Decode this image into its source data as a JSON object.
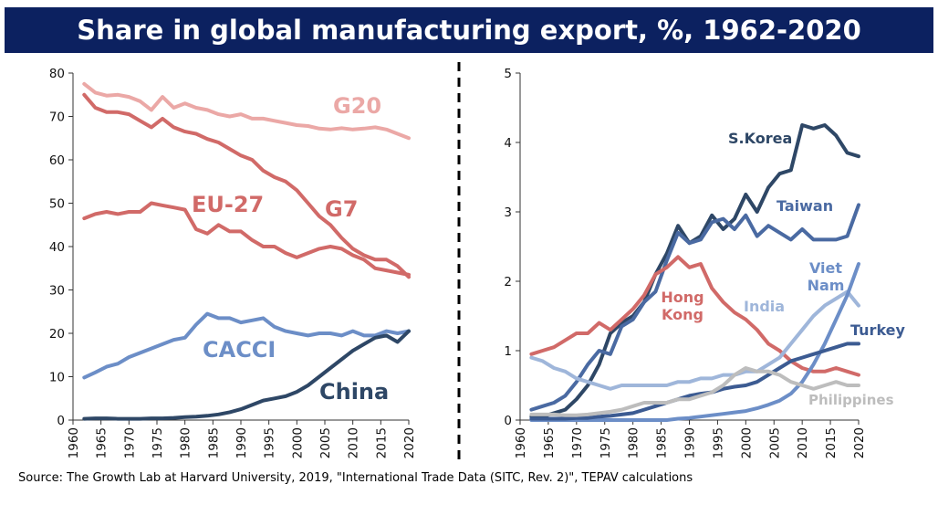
{
  "title": "Share in global manufacturing export, %, 1962-2020",
  "source": "Source: The Growth Lab at Harvard University, 2019, \"International Trade Data (SITC, Rev. 2)\", TEPAV calculations",
  "chart_data": [
    {
      "type": "line",
      "title": "",
      "xlabel": "",
      "ylabel": "",
      "xlim": [
        1960,
        2020
      ],
      "ylim": [
        0,
        80
      ],
      "yticks": [
        "0",
        "10",
        "20",
        "30",
        "40",
        "50",
        "60",
        "70",
        "80"
      ],
      "xticks": [
        "1960",
        "1965",
        "1970",
        "1975",
        "1980",
        "1985",
        "1990",
        "1995",
        "2000",
        "2005",
        "2010",
        "2015",
        "2020"
      ],
      "series": [
        {
          "name": "G20",
          "color": "#eba8a6",
          "x": [
            1962,
            1964,
            1966,
            1968,
            1970,
            1972,
            1974,
            1976,
            1978,
            1980,
            1982,
            1984,
            1986,
            1988,
            1990,
            1992,
            1994,
            1996,
            1998,
            2000,
            2002,
            2004,
            2006,
            2008,
            2010,
            2012,
            2014,
            2016,
            2018,
            2020
          ],
          "y": [
            77.5,
            75.5,
            74.8,
            75,
            74.5,
            73.5,
            71.5,
            74.5,
            72,
            73,
            72,
            71.5,
            70.5,
            70,
            70.5,
            69.5,
            69.5,
            69,
            68.5,
            68,
            67.8,
            67.2,
            67,
            67.3,
            67,
            67.2,
            67.5,
            67,
            66,
            65
          ]
        },
        {
          "name": "G7",
          "color": "#d16a68",
          "x": [
            1962,
            1964,
            1966,
            1968,
            1970,
            1972,
            1974,
            1976,
            1978,
            1980,
            1982,
            1984,
            1986,
            1988,
            1990,
            1992,
            1994,
            1996,
            1998,
            2000,
            2002,
            2004,
            2006,
            2008,
            2010,
            2012,
            2014,
            2016,
            2018,
            2020
          ],
          "y": [
            75,
            72,
            71,
            71,
            70.5,
            69,
            67.5,
            69.5,
            67.5,
            66.5,
            66,
            64.8,
            64,
            62.5,
            61,
            60,
            57.5,
            56,
            55,
            53,
            50,
            47,
            45,
            42,
            39.5,
            38,
            37,
            37,
            35.5,
            33
          ]
        },
        {
          "name": "EU-27",
          "color": "#d16a68",
          "x": [
            1962,
            1964,
            1966,
            1968,
            1970,
            1972,
            1974,
            1976,
            1978,
            1980,
            1982,
            1984,
            1986,
            1988,
            1990,
            1992,
            1994,
            1996,
            1998,
            2000,
            2002,
            2004,
            2006,
            2008,
            2010,
            2012,
            2014,
            2016,
            2018,
            2020
          ],
          "y": [
            46.5,
            47.5,
            48,
            47.5,
            48,
            48,
            50,
            49.5,
            49,
            48.5,
            44,
            43,
            45,
            43.5,
            43.5,
            41.5,
            40,
            40,
            38.5,
            37.5,
            38.5,
            39.5,
            40,
            39.5,
            38,
            37,
            35,
            34.5,
            34,
            33.5
          ]
        },
        {
          "name": "CACCI",
          "color": "#6c8ec7",
          "x": [
            1962,
            1964,
            1966,
            1968,
            1970,
            1972,
            1974,
            1976,
            1978,
            1980,
            1982,
            1984,
            1986,
            1988,
            1990,
            1992,
            1994,
            1996,
            1998,
            2000,
            2002,
            2004,
            2006,
            2008,
            2010,
            2012,
            2014,
            2016,
            2018,
            2020
          ],
          "y": [
            9.8,
            11,
            12.3,
            13,
            14.5,
            15.5,
            16.5,
            17.5,
            18.5,
            19,
            22,
            24.5,
            23.5,
            23.5,
            22.5,
            23,
            23.5,
            21.5,
            20.5,
            20,
            19.5,
            20,
            20,
            19.5,
            20.5,
            19.5,
            19.5,
            20.5,
            20,
            20.5
          ]
        },
        {
          "name": "China",
          "color": "#2e4766",
          "x": [
            1962,
            1964,
            1966,
            1968,
            1970,
            1972,
            1974,
            1976,
            1978,
            1980,
            1982,
            1984,
            1986,
            1988,
            1990,
            1992,
            1994,
            1996,
            1998,
            2000,
            2002,
            2004,
            2006,
            2008,
            2010,
            2012,
            2014,
            2016,
            2018,
            2020
          ],
          "y": [
            0.3,
            0.4,
            0.4,
            0.3,
            0.3,
            0.3,
            0.4,
            0.4,
            0.5,
            0.7,
            0.8,
            1,
            1.3,
            1.8,
            2.5,
            3.5,
            4.5,
            5,
            5.5,
            6.5,
            8,
            10,
            12,
            14,
            16,
            17.5,
            19,
            19.5,
            18,
            20.5
          ]
        }
      ]
    },
    {
      "type": "line",
      "title": "",
      "xlabel": "",
      "ylabel": "",
      "xlim": [
        1960,
        2020
      ],
      "ylim": [
        0,
        5
      ],
      "yticks": [
        "0",
        "1",
        "2",
        "3",
        "4",
        "5"
      ],
      "xticks": [
        "1960",
        "1965",
        "1970",
        "1975",
        "1980",
        "1985",
        "1990",
        "1995",
        "2000",
        "2005",
        "2010",
        "2015",
        "2020"
      ],
      "series": [
        {
          "name": "S.Korea",
          "color": "#2e4766",
          "x": [
            1962,
            1964,
            1966,
            1968,
            1970,
            1972,
            1974,
            1976,
            1978,
            1980,
            1982,
            1984,
            1986,
            1988,
            1990,
            1992,
            1994,
            1996,
            1998,
            2000,
            2002,
            2004,
            2006,
            2008,
            2010,
            2012,
            2014,
            2016,
            2018,
            2020
          ],
          "y": [
            0.05,
            0.05,
            0.1,
            0.15,
            0.3,
            0.5,
            0.8,
            1.25,
            1.4,
            1.5,
            1.7,
            2.1,
            2.4,
            2.8,
            2.55,
            2.65,
            2.95,
            2.75,
            2.9,
            3.25,
            3.0,
            3.35,
            3.55,
            3.6,
            4.25,
            4.2,
            4.25,
            4.1,
            3.85,
            3.8
          ]
        },
        {
          "name": "Taiwan",
          "color": "#4a6aa2",
          "x": [
            1962,
            1964,
            1966,
            1968,
            1970,
            1972,
            1974,
            1976,
            1978,
            1980,
            1982,
            1984,
            1986,
            1988,
            1990,
            1992,
            1994,
            1996,
            1998,
            2000,
            2002,
            2004,
            2006,
            2008,
            2010,
            2012,
            2014,
            2016,
            2018,
            2020
          ],
          "y": [
            0.15,
            0.2,
            0.25,
            0.35,
            0.55,
            0.8,
            1.0,
            0.95,
            1.35,
            1.45,
            1.7,
            1.85,
            2.3,
            2.7,
            2.55,
            2.6,
            2.85,
            2.9,
            2.75,
            2.95,
            2.65,
            2.8,
            2.7,
            2.6,
            2.75,
            2.6,
            2.6,
            2.6,
            2.65,
            3.1
          ]
        },
        {
          "name": "Hong Kong",
          "color": "#d16a68",
          "x": [
            1962,
            1964,
            1966,
            1968,
            1970,
            1972,
            1974,
            1976,
            1978,
            1980,
            1982,
            1984,
            1986,
            1988,
            1990,
            1992,
            1994,
            1996,
            1998,
            2000,
            2002,
            2004,
            2006,
            2008,
            2010,
            2012,
            2014,
            2016,
            2018,
            2020
          ],
          "y": [
            0.95,
            1.0,
            1.05,
            1.15,
            1.25,
            1.25,
            1.4,
            1.3,
            1.45,
            1.6,
            1.8,
            2.1,
            2.2,
            2.35,
            2.2,
            2.25,
            1.9,
            1.7,
            1.55,
            1.45,
            1.3,
            1.1,
            1.0,
            0.85,
            0.75,
            0.7,
            0.7,
            0.75,
            0.7,
            0.65
          ]
        },
        {
          "name": "India",
          "color": "#9fb6da",
          "x": [
            1962,
            1964,
            1966,
            1968,
            1970,
            1972,
            1974,
            1976,
            1978,
            1980,
            1982,
            1984,
            1986,
            1988,
            1990,
            1992,
            1994,
            1996,
            1998,
            2000,
            2002,
            2004,
            2006,
            2008,
            2010,
            2012,
            2014,
            2016,
            2018,
            2020
          ],
          "y": [
            0.9,
            0.85,
            0.75,
            0.7,
            0.6,
            0.55,
            0.5,
            0.45,
            0.5,
            0.5,
            0.5,
            0.5,
            0.5,
            0.55,
            0.55,
            0.6,
            0.6,
            0.65,
            0.65,
            0.7,
            0.7,
            0.8,
            0.9,
            1.1,
            1.3,
            1.5,
            1.65,
            1.75,
            1.85,
            1.65
          ]
        },
        {
          "name": "Viet Nam",
          "color": "#6c8ec7",
          "x": [
            1962,
            1964,
            1966,
            1968,
            1970,
            1972,
            1974,
            1976,
            1978,
            1980,
            1982,
            1984,
            1986,
            1988,
            1990,
            1992,
            1994,
            1996,
            1998,
            2000,
            2002,
            2004,
            2006,
            2008,
            2010,
            2012,
            2014,
            2016,
            2018,
            2020
          ],
          "y": [
            0,
            0,
            0,
            0,
            0,
            0,
            0,
            0,
            0,
            0,
            0,
            0,
            0,
            0.02,
            0.03,
            0.05,
            0.07,
            0.09,
            0.11,
            0.13,
            0.17,
            0.22,
            0.28,
            0.38,
            0.55,
            0.8,
            1.1,
            1.45,
            1.8,
            2.25
          ]
        },
        {
          "name": "Turkey",
          "color": "#3c5b92",
          "x": [
            1962,
            1964,
            1966,
            1968,
            1970,
            1972,
            1974,
            1976,
            1978,
            1980,
            1982,
            1984,
            1986,
            1988,
            1990,
            1992,
            1994,
            1996,
            1998,
            2000,
            2002,
            2004,
            2006,
            2008,
            2010,
            2012,
            2014,
            2016,
            2018,
            2020
          ],
          "y": [
            0.02,
            0.02,
            0.02,
            0.02,
            0.03,
            0.03,
            0.05,
            0.06,
            0.08,
            0.1,
            0.15,
            0.2,
            0.25,
            0.3,
            0.35,
            0.38,
            0.4,
            0.45,
            0.48,
            0.5,
            0.55,
            0.65,
            0.75,
            0.85,
            0.9,
            0.95,
            1.0,
            1.05,
            1.1,
            1.1
          ]
        },
        {
          "name": "Philippines",
          "color": "#bdbdbd",
          "x": [
            1962,
            1964,
            1966,
            1968,
            1970,
            1972,
            1974,
            1976,
            1978,
            1980,
            1982,
            1984,
            1986,
            1988,
            1990,
            1992,
            1994,
            1996,
            1998,
            2000,
            2002,
            2004,
            2006,
            2008,
            2010,
            2012,
            2014,
            2016,
            2018,
            2020
          ],
          "y": [
            0.08,
            0.08,
            0.08,
            0.07,
            0.07,
            0.08,
            0.1,
            0.12,
            0.15,
            0.2,
            0.25,
            0.25,
            0.25,
            0.3,
            0.3,
            0.35,
            0.4,
            0.5,
            0.65,
            0.75,
            0.7,
            0.7,
            0.65,
            0.55,
            0.5,
            0.45,
            0.5,
            0.55,
            0.5,
            0.5
          ]
        }
      ]
    }
  ]
}
